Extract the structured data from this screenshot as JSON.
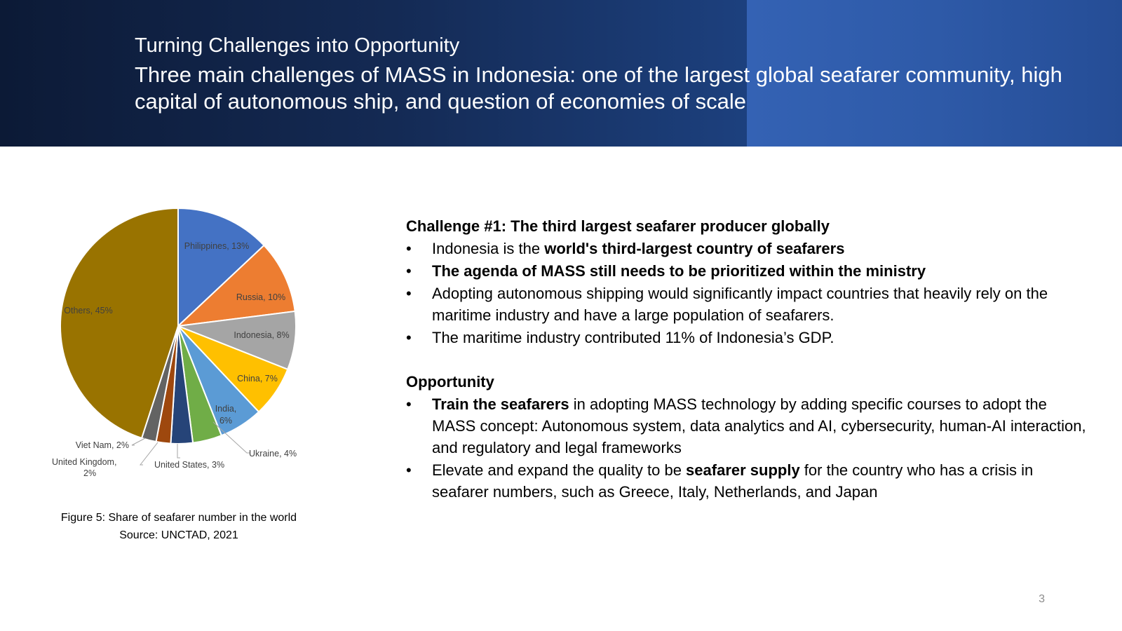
{
  "header": {
    "kicker": "Turning Challenges into Opportunity",
    "title": "Three main challenges of MASS in Indonesia: one of the largest global seafarer community, high capital of autonomous ship, and question of economies of scale"
  },
  "chart_data": {
    "type": "pie",
    "title": "",
    "categories": [
      "Philippines",
      "Russia",
      "Indonesia",
      "China",
      "India",
      "Ukraine",
      "United States",
      "United Kingdom",
      "Viet Nam",
      "Others"
    ],
    "values": [
      13,
      10,
      8,
      7,
      6,
      4,
      3,
      2,
      2,
      45
    ],
    "unit": "%",
    "colors": [
      "#4472c4",
      "#ed7d31",
      "#a5a5a5",
      "#ffc000",
      "#5b9bd5",
      "#70ad47",
      "#264478",
      "#9e480e",
      "#636363",
      "#997300"
    ],
    "data_labels": [
      "Philippines, 13%",
      "Russia, 10%",
      "Indonesia, 8%",
      "China, 7%",
      "India, 6%",
      "Ukraine, 4%",
      "United States, 3%",
      "United Kingdom, 2%",
      "Viet Nam, 2%",
      "Others, 45%"
    ],
    "legend": "none"
  },
  "caption": {
    "line1": "Figure 5: Share of seafarer number in the world",
    "line2": "Source: UNCTAD, 2021"
  },
  "challenge": {
    "heading": "Challenge #1: The third largest seafarer producer globally",
    "bullets": [
      {
        "before": "Indonesia is the ",
        "bold": "world's third-largest country of seafarers",
        "after": ""
      },
      {
        "before": "",
        "bold": "The agenda of MASS still needs to be prioritized within the ministry",
        "after": ""
      },
      {
        "before": "Adopting autonomous shipping would significantly impact countries that heavily rely on the maritime industry and have a large population of seafarers.",
        "bold": "",
        "after": ""
      },
      {
        "before": "The maritime industry contributed 11% of Indonesia’s GDP.",
        "bold": "",
        "after": ""
      }
    ]
  },
  "opportunity": {
    "heading": "Opportunity",
    "bullets": [
      {
        "before": "",
        "bold": "Train the seafarers",
        "after": " in adopting MASS technology by adding specific courses to adopt the MASS concept: Autonomous system, data analytics and AI, cybersecurity, human-AI interaction, and regulatory and legal frameworks"
      },
      {
        "before": "Elevate and expand the quality to be ",
        "bold": "seafarer supply",
        "after": " for the country who has a crisis in seafarer numbers, such as Greece, Italy, Netherlands, and Japan"
      }
    ]
  },
  "page_number": "3"
}
